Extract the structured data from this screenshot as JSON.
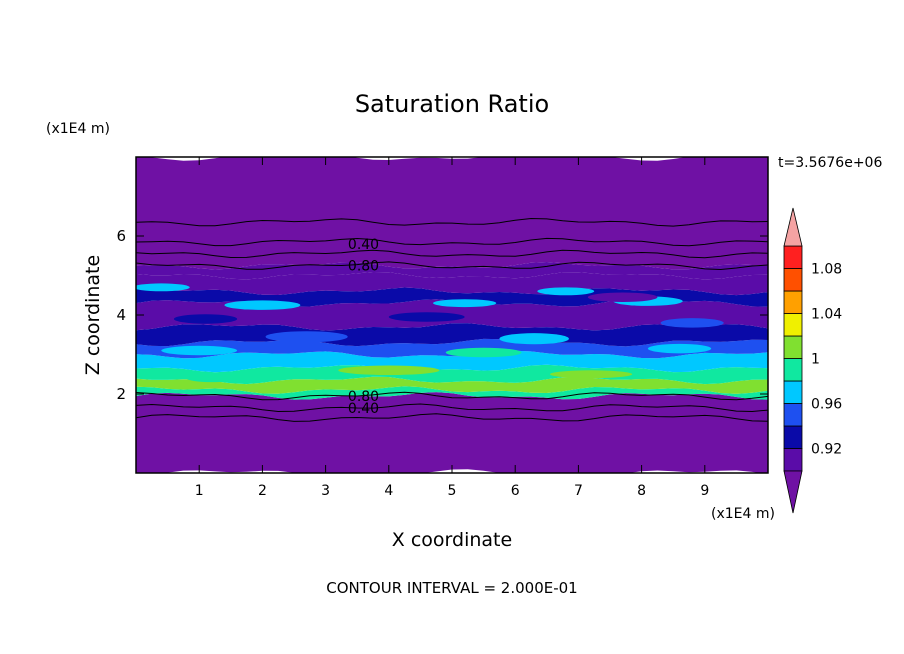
{
  "chart_data": {
    "type": "heatmap",
    "title": "Saturation Ratio",
    "xlabel": "X coordinate",
    "ylabel": "Z coordinate",
    "x_unit": "(x1E4 m)",
    "z_unit": "(x1E4 m)",
    "time_label": "t=3.5676e+06",
    "footer": "CONTOUR INTERVAL = 2.000E-01",
    "xlim": [
      0,
      10
    ],
    "ylim": [
      0,
      8
    ],
    "x_ticks": [
      "1",
      "2",
      "3",
      "4",
      "5",
      "6",
      "7",
      "8",
      "9"
    ],
    "y_ticks": [
      "2",
      "4",
      "6"
    ],
    "colorbar": {
      "levels": [
        0.9,
        0.92,
        0.94,
        0.96,
        0.98,
        1.0,
        1.02,
        1.04,
        1.06,
        1.08,
        1.1
      ],
      "colors": [
        "#5a0ca8",
        "#0a0aa8",
        "#1e50f0",
        "#00c8ff",
        "#10e8a0",
        "#80e030",
        "#f0f000",
        "#ffa000",
        "#ff5000",
        "#ff2020"
      ],
      "under_color": "#6f11a4",
      "over_color": "#f5a3a3",
      "tick_labels": [
        {
          "value": 0.92,
          "label": "0.92"
        },
        {
          "value": 0.96,
          "label": "0.96"
        },
        {
          "value": 1.0,
          "label": "1"
        },
        {
          "value": 1.04,
          "label": "1.04"
        },
        {
          "value": 1.08,
          "label": "1.08"
        }
      ]
    },
    "contour_labels": [
      {
        "text": "0.40",
        "x": 3.6,
        "z": 5.8
      },
      {
        "text": "0.80",
        "x": 3.6,
        "z": 5.25
      },
      {
        "text": "0.80",
        "x": 3.6,
        "z": 1.95
      },
      {
        "text": "0.40",
        "x": 3.6,
        "z": 1.65
      }
    ],
    "bands": [
      {
        "z0": 0.0,
        "z1": 1.95,
        "level": 0.5
      },
      {
        "z0": 1.95,
        "z1": 2.1,
        "level": 0.99
      },
      {
        "z0": 2.1,
        "z1": 2.35,
        "level": 1.01
      },
      {
        "z0": 2.35,
        "z1": 2.65,
        "level": 0.99
      },
      {
        "z0": 2.65,
        "z1": 3.0,
        "level": 0.97
      },
      {
        "z0": 3.0,
        "z1": 3.3,
        "level": 0.95
      },
      {
        "z0": 3.3,
        "z1": 3.7,
        "level": 0.93
      },
      {
        "z0": 3.7,
        "z1": 4.3,
        "level": 0.91
      },
      {
        "z0": 4.3,
        "z1": 4.6,
        "level": 0.93
      },
      {
        "z0": 4.6,
        "z1": 5.0,
        "level": 0.91
      },
      {
        "z0": 5.0,
        "z1": 5.25,
        "level": 0.9
      },
      {
        "z0": 5.25,
        "z1": 8.0,
        "level": 0.5
      }
    ],
    "contour_lines_z": [
      1.4,
      1.65,
      1.95,
      5.25,
      5.55,
      5.85,
      6.35
    ]
  }
}
